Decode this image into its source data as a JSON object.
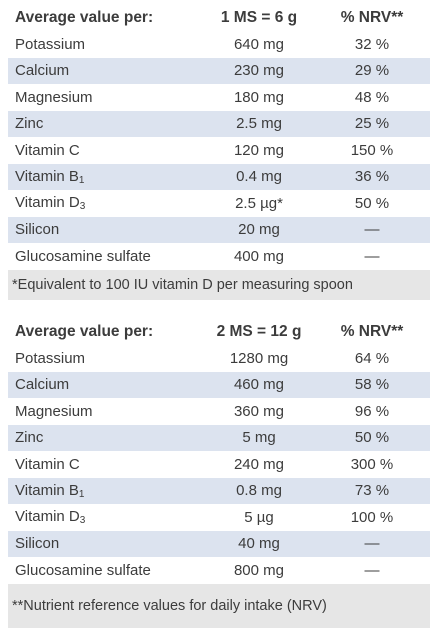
{
  "tables": [
    {
      "header": {
        "label": "Average value per:",
        "dose": "1 MS = 6 g",
        "nrv": "% NRV**"
      },
      "rows": [
        {
          "name": "Potassium",
          "sub": "",
          "amount": "640 mg",
          "nrv": "32 %"
        },
        {
          "name": "Calcium",
          "sub": "",
          "amount": "230 mg",
          "nrv": "29 %"
        },
        {
          "name": "Magnesium",
          "sub": "",
          "amount": "180 mg",
          "nrv": "48 %"
        },
        {
          "name": "Zinc",
          "sub": "",
          "amount": "2.5 mg",
          "nrv": "25 %"
        },
        {
          "name": "Vitamin C",
          "sub": "",
          "amount": "120 mg",
          "nrv": "150 %"
        },
        {
          "name": "Vitamin B",
          "sub": "1",
          "amount": "0.4 mg",
          "nrv": "36 %"
        },
        {
          "name": "Vitamin D",
          "sub": "3",
          "amount": "2.5 µg*",
          "nrv": "50 %"
        },
        {
          "name": "Silicon",
          "sub": "",
          "amount": "20 mg",
          "nrv": "—"
        },
        {
          "name": "Glucosamine sulfate",
          "sub": "",
          "amount": "400 mg",
          "nrv": "—"
        }
      ],
      "footnote": "*Equivalent to 100 IU vitamin D per measuring spoon"
    },
    {
      "header": {
        "label": "Average value per:",
        "dose": "2 MS = 12 g",
        "nrv": "% NRV**"
      },
      "rows": [
        {
          "name": "Potassium",
          "sub": "",
          "amount": "1280 mg",
          "nrv": "64 %"
        },
        {
          "name": "Calcium",
          "sub": "",
          "amount": "460 mg",
          "nrv": "58 %"
        },
        {
          "name": "Magnesium",
          "sub": "",
          "amount": "360 mg",
          "nrv": "96 %"
        },
        {
          "name": "Zinc",
          "sub": "",
          "amount": "5 mg",
          "nrv": "50 %"
        },
        {
          "name": "Vitamin C",
          "sub": "",
          "amount": "240 mg",
          "nrv": "300 %"
        },
        {
          "name": "Vitamin B",
          "sub": "1",
          "amount": "0.8 mg",
          "nrv": "73 %"
        },
        {
          "name": "Vitamin D",
          "sub": "3",
          "amount": "5 µg",
          "nrv": "100 %"
        },
        {
          "name": "Silicon",
          "sub": "",
          "amount": "40 mg",
          "nrv": "—"
        },
        {
          "name": "Glucosamine sulfate",
          "sub": "",
          "amount": "800 mg",
          "nrv": "—"
        }
      ],
      "footnote": "**Nutrient reference values for daily intake (NRV)"
    }
  ]
}
